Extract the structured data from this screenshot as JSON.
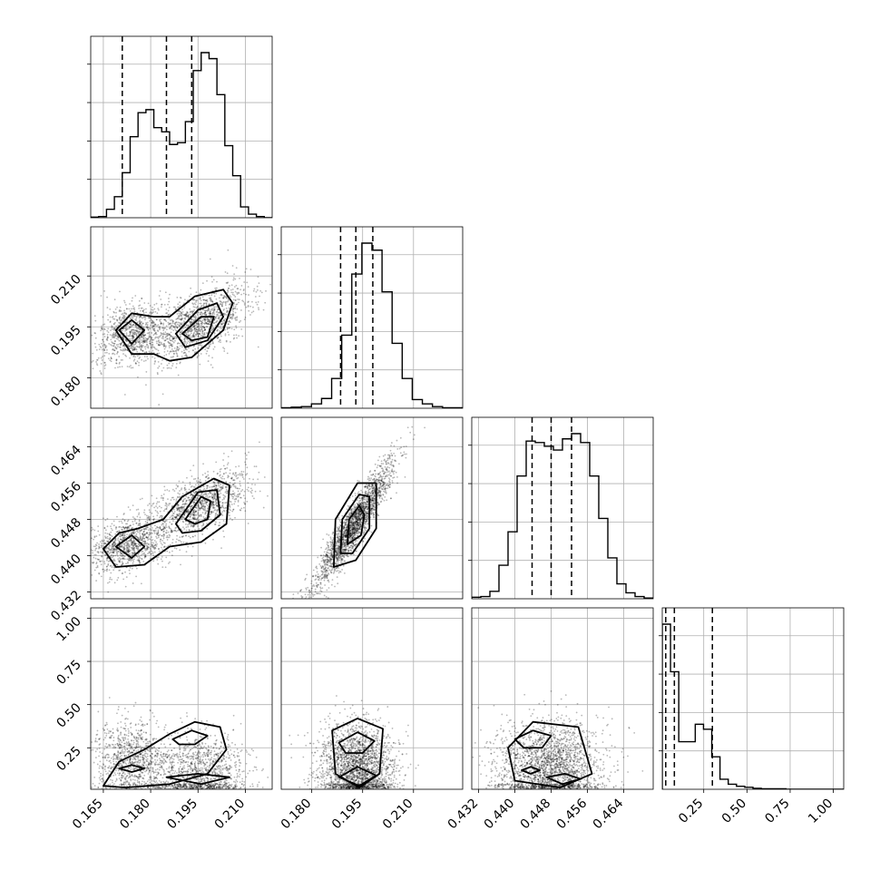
{
  "chart_data": {
    "type": "corner",
    "title": "",
    "parameters": [
      {
        "name": "",
        "range": [
          0.161,
          0.2185
        ],
        "ticks": [
          0.165,
          0.18,
          0.195,
          0.21
        ],
        "tick_labels": [
          "0.165",
          "0.180",
          "0.195",
          "0.210"
        ]
      },
      {
        "name": "",
        "range": [
          0.171,
          0.2245
        ],
        "ticks": [
          0.18,
          0.195,
          0.21
        ],
        "tick_labels": [
          "0.180",
          "0.195",
          "0.210"
        ]
      },
      {
        "name": "",
        "range": [
          0.4305,
          0.4705
        ],
        "ticks": [
          0.432,
          0.44,
          0.448,
          0.456,
          0.464
        ],
        "tick_labels": [
          "0.432",
          "0.440",
          "0.448",
          "0.456",
          "0.464"
        ]
      },
      {
        "name": "",
        "range": [
          0.01,
          1.06
        ],
        "ticks": [
          0.25,
          0.5,
          0.75,
          1.0
        ],
        "tick_labels": [
          "0.25",
          "0.50",
          "0.75",
          "1.00"
        ]
      }
    ],
    "quantiles": [
      [
        0.171,
        0.185,
        0.193
      ],
      [
        0.1885,
        0.193,
        0.198
      ],
      [
        0.4438,
        0.448,
        0.4525
      ],
      [
        0.03,
        0.08,
        0.3
      ]
    ],
    "histograms": [
      {
        "bins": [
          0.161,
          0.2185
        ],
        "counts": [
          1,
          2,
          14,
          35,
          75,
          135,
          175,
          180,
          150,
          143,
          122,
          125,
          160,
          245,
          275,
          265,
          205,
          120,
          70,
          18,
          6,
          2,
          0
        ]
      },
      {
        "bins": [
          0.171,
          0.2245
        ],
        "counts": [
          1,
          2,
          3,
          8,
          18,
          55,
          135,
          248,
          305,
          292,
          215,
          120,
          55,
          16,
          8,
          3,
          1,
          1
        ]
      },
      {
        "bins": [
          0.4305,
          0.4705
        ],
        "counts": [
          2,
          3,
          10,
          45,
          90,
          165,
          212,
          210,
          205,
          200,
          215,
          222,
          210,
          165,
          108,
          55,
          20,
          8,
          3,
          1
        ]
      },
      {
        "bins": [
          0.01,
          1.06
        ],
        "counts": [
          330,
          235,
          95,
          95,
          130,
          120,
          65,
          20,
          10,
          6,
          4,
          2,
          1,
          1,
          1,
          0,
          0,
          0,
          0,
          0,
          0,
          0
        ]
      }
    ],
    "scatter_blobs": [
      {
        "x": 0,
        "y": 1,
        "components": [
          {
            "mx": 0.174,
            "my": 0.193,
            "sx": 0.006,
            "sy": 0.0045,
            "r": 0.25,
            "w": 0.42
          },
          {
            "mx": 0.195,
            "my": 0.196,
            "sx": 0.008,
            "sy": 0.0055,
            "r": 0.55,
            "w": 0.58
          }
        ]
      },
      {
        "x": 0,
        "y": 2,
        "components": [
          {
            "mx": 0.173,
            "my": 0.4425,
            "sx": 0.006,
            "sy": 0.003,
            "r": 0.3,
            "w": 0.42
          },
          {
            "mx": 0.195,
            "my": 0.451,
            "sx": 0.008,
            "sy": 0.004,
            "r": 0.6,
            "w": 0.58
          }
        ]
      },
      {
        "x": 1,
        "y": 2,
        "components": [
          {
            "mx": 0.1925,
            "my": 0.447,
            "sx": 0.0055,
            "sy": 0.0065,
            "r": 0.92,
            "w": 1.0
          }
        ]
      },
      {
        "x": 0,
        "y": 3,
        "components": [
          {
            "mx": 0.174,
            "my": 0.18,
            "sx": 0.006,
            "sy": 0.11,
            "r": 0.0,
            "w": 0.42
          },
          {
            "mx": 0.195,
            "my": 0.1,
            "sx": 0.008,
            "sy": 0.12,
            "r": 0.0,
            "w": 0.58
          }
        ]
      },
      {
        "x": 1,
        "y": 3,
        "components": [
          {
            "mx": 0.1935,
            "my": 0.14,
            "sx": 0.0055,
            "sy": 0.13,
            "r": 0.0,
            "w": 1.0
          }
        ]
      },
      {
        "x": 2,
        "y": 3,
        "components": [
          {
            "mx": 0.4475,
            "my": 0.14,
            "sx": 0.0058,
            "sy": 0.13,
            "r": 0.0,
            "w": 1.0
          }
        ]
      }
    ],
    "contours": [
      {
        "x": 0,
        "y": 1,
        "levels": [
          [
            [
              0.169,
              0.194
            ],
            [
              0.174,
              0.199
            ],
            [
              0.181,
              0.198
            ],
            [
              0.186,
              0.198
            ],
            [
              0.194,
              0.204
            ],
            [
              0.203,
              0.206
            ],
            [
              0.206,
              0.202
            ],
            [
              0.203,
              0.194
            ],
            [
              0.193,
              0.186
            ],
            [
              0.186,
              0.185
            ],
            [
              0.181,
              0.187
            ],
            [
              0.174,
              0.187
            ]
          ],
          [
            [
              0.17,
              0.194
            ],
            [
              0.174,
              0.197
            ],
            [
              0.178,
              0.194
            ],
            [
              0.174,
              0.19
            ]
          ],
          [
            [
              0.188,
              0.193
            ],
            [
              0.195,
              0.2
            ],
            [
              0.201,
              0.202
            ],
            [
              0.203,
              0.198
            ],
            [
              0.198,
              0.191
            ],
            [
              0.191,
              0.189
            ]
          ],
          [
            [
              0.19,
              0.193
            ],
            [
              0.196,
              0.198
            ],
            [
              0.2,
              0.198
            ],
            [
              0.198,
              0.192
            ],
            [
              0.193,
              0.191
            ]
          ]
        ]
      },
      {
        "x": 0,
        "y": 2,
        "levels": [
          [
            [
              0.165,
              0.4415
            ],
            [
              0.17,
              0.445
            ],
            [
              0.176,
              0.446
            ],
            [
              0.184,
              0.448
            ],
            [
              0.19,
              0.453
            ],
            [
              0.2,
              0.457
            ],
            [
              0.205,
              0.4555
            ],
            [
              0.204,
              0.447
            ],
            [
              0.196,
              0.443
            ],
            [
              0.186,
              0.442
            ],
            [
              0.178,
              0.438
            ],
            [
              0.169,
              0.4375
            ]
          ],
          [
            [
              0.169,
              0.442
            ],
            [
              0.174,
              0.4445
            ],
            [
              0.178,
              0.442
            ],
            [
              0.174,
              0.4395
            ]
          ],
          [
            [
              0.188,
              0.447
            ],
            [
              0.195,
              0.454
            ],
            [
              0.201,
              0.4545
            ],
            [
              0.202,
              0.449
            ],
            [
              0.196,
              0.4455
            ],
            [
              0.19,
              0.445
            ]
          ],
          [
            [
              0.191,
              0.448
            ],
            [
              0.196,
              0.453
            ],
            [
              0.199,
              0.452
            ],
            [
              0.198,
              0.448
            ],
            [
              0.194,
              0.447
            ]
          ]
        ]
      },
      {
        "x": 1,
        "y": 2,
        "levels": [
          [
            [
              0.1865,
              0.4375
            ],
            [
              0.187,
              0.448
            ],
            [
              0.1935,
              0.456
            ],
            [
              0.199,
              0.456
            ],
            [
              0.199,
              0.446
            ],
            [
              0.193,
              0.439
            ]
          ],
          [
            [
              0.1885,
              0.4405
            ],
            [
              0.189,
              0.448
            ],
            [
              0.194,
              0.4535
            ],
            [
              0.197,
              0.453
            ],
            [
              0.197,
              0.446
            ],
            [
              0.192,
              0.4405
            ]
          ],
          [
            [
              0.1905,
              0.4425
            ],
            [
              0.191,
              0.448
            ],
            [
              0.194,
              0.451
            ],
            [
              0.1955,
              0.449
            ],
            [
              0.1945,
              0.4445
            ]
          ]
        ]
      },
      {
        "x": 0,
        "y": 3,
        "levels": [
          [
            [
              0.165,
              0.03
            ],
            [
              0.17,
              0.17
            ],
            [
              0.178,
              0.24
            ],
            [
              0.186,
              0.33
            ],
            [
              0.194,
              0.4
            ],
            [
              0.202,
              0.37
            ],
            [
              0.204,
              0.24
            ],
            [
              0.198,
              0.1
            ],
            [
              0.186,
              0.04
            ],
            [
              0.172,
              0.02
            ]
          ],
          [
            [
              0.187,
              0.3
            ],
            [
              0.193,
              0.35
            ],
            [
              0.198,
              0.32
            ],
            [
              0.194,
              0.27
            ],
            [
              0.189,
              0.27
            ]
          ],
          [
            [
              0.17,
              0.13
            ],
            [
              0.174,
              0.15
            ],
            [
              0.178,
              0.13
            ],
            [
              0.174,
              0.11
            ]
          ],
          [
            [
              0.185,
              0.08
            ],
            [
              0.195,
              0.1
            ],
            [
              0.205,
              0.08
            ],
            [
              0.196,
              0.04
            ]
          ]
        ]
      },
      {
        "x": 1,
        "y": 3,
        "levels": [
          [
            [
              0.186,
              0.35
            ],
            [
              0.1935,
              0.42
            ],
            [
              0.201,
              0.36
            ],
            [
              0.2,
              0.1
            ],
            [
              0.194,
              0.02
            ],
            [
              0.187,
              0.1
            ]
          ],
          [
            [
              0.188,
              0.28
            ],
            [
              0.1935,
              0.34
            ],
            [
              0.1985,
              0.29
            ],
            [
              0.195,
              0.22
            ],
            [
              0.19,
              0.22
            ]
          ],
          [
            [
              0.188,
              0.08
            ],
            [
              0.1935,
              0.14
            ],
            [
              0.199,
              0.09
            ],
            [
              0.194,
              0.03
            ]
          ]
        ]
      },
      {
        "x": 2,
        "y": 3,
        "levels": [
          [
            [
              0.4385,
              0.25
            ],
            [
              0.444,
              0.4
            ],
            [
              0.454,
              0.37
            ],
            [
              0.457,
              0.1
            ],
            [
              0.45,
              0.02
            ],
            [
              0.44,
              0.06
            ]
          ],
          [
            [
              0.44,
              0.3
            ],
            [
              0.444,
              0.35
            ],
            [
              0.448,
              0.32
            ],
            [
              0.446,
              0.25
            ],
            [
              0.442,
              0.25
            ]
          ],
          [
            [
              0.4415,
              0.12
            ],
            [
              0.4435,
              0.14
            ],
            [
              0.4455,
              0.12
            ],
            [
              0.4435,
              0.1
            ]
          ],
          [
            [
              0.447,
              0.08
            ],
            [
              0.451,
              0.1
            ],
            [
              0.4545,
              0.07
            ],
            [
              0.4505,
              0.04
            ]
          ]
        ]
      }
    ]
  }
}
